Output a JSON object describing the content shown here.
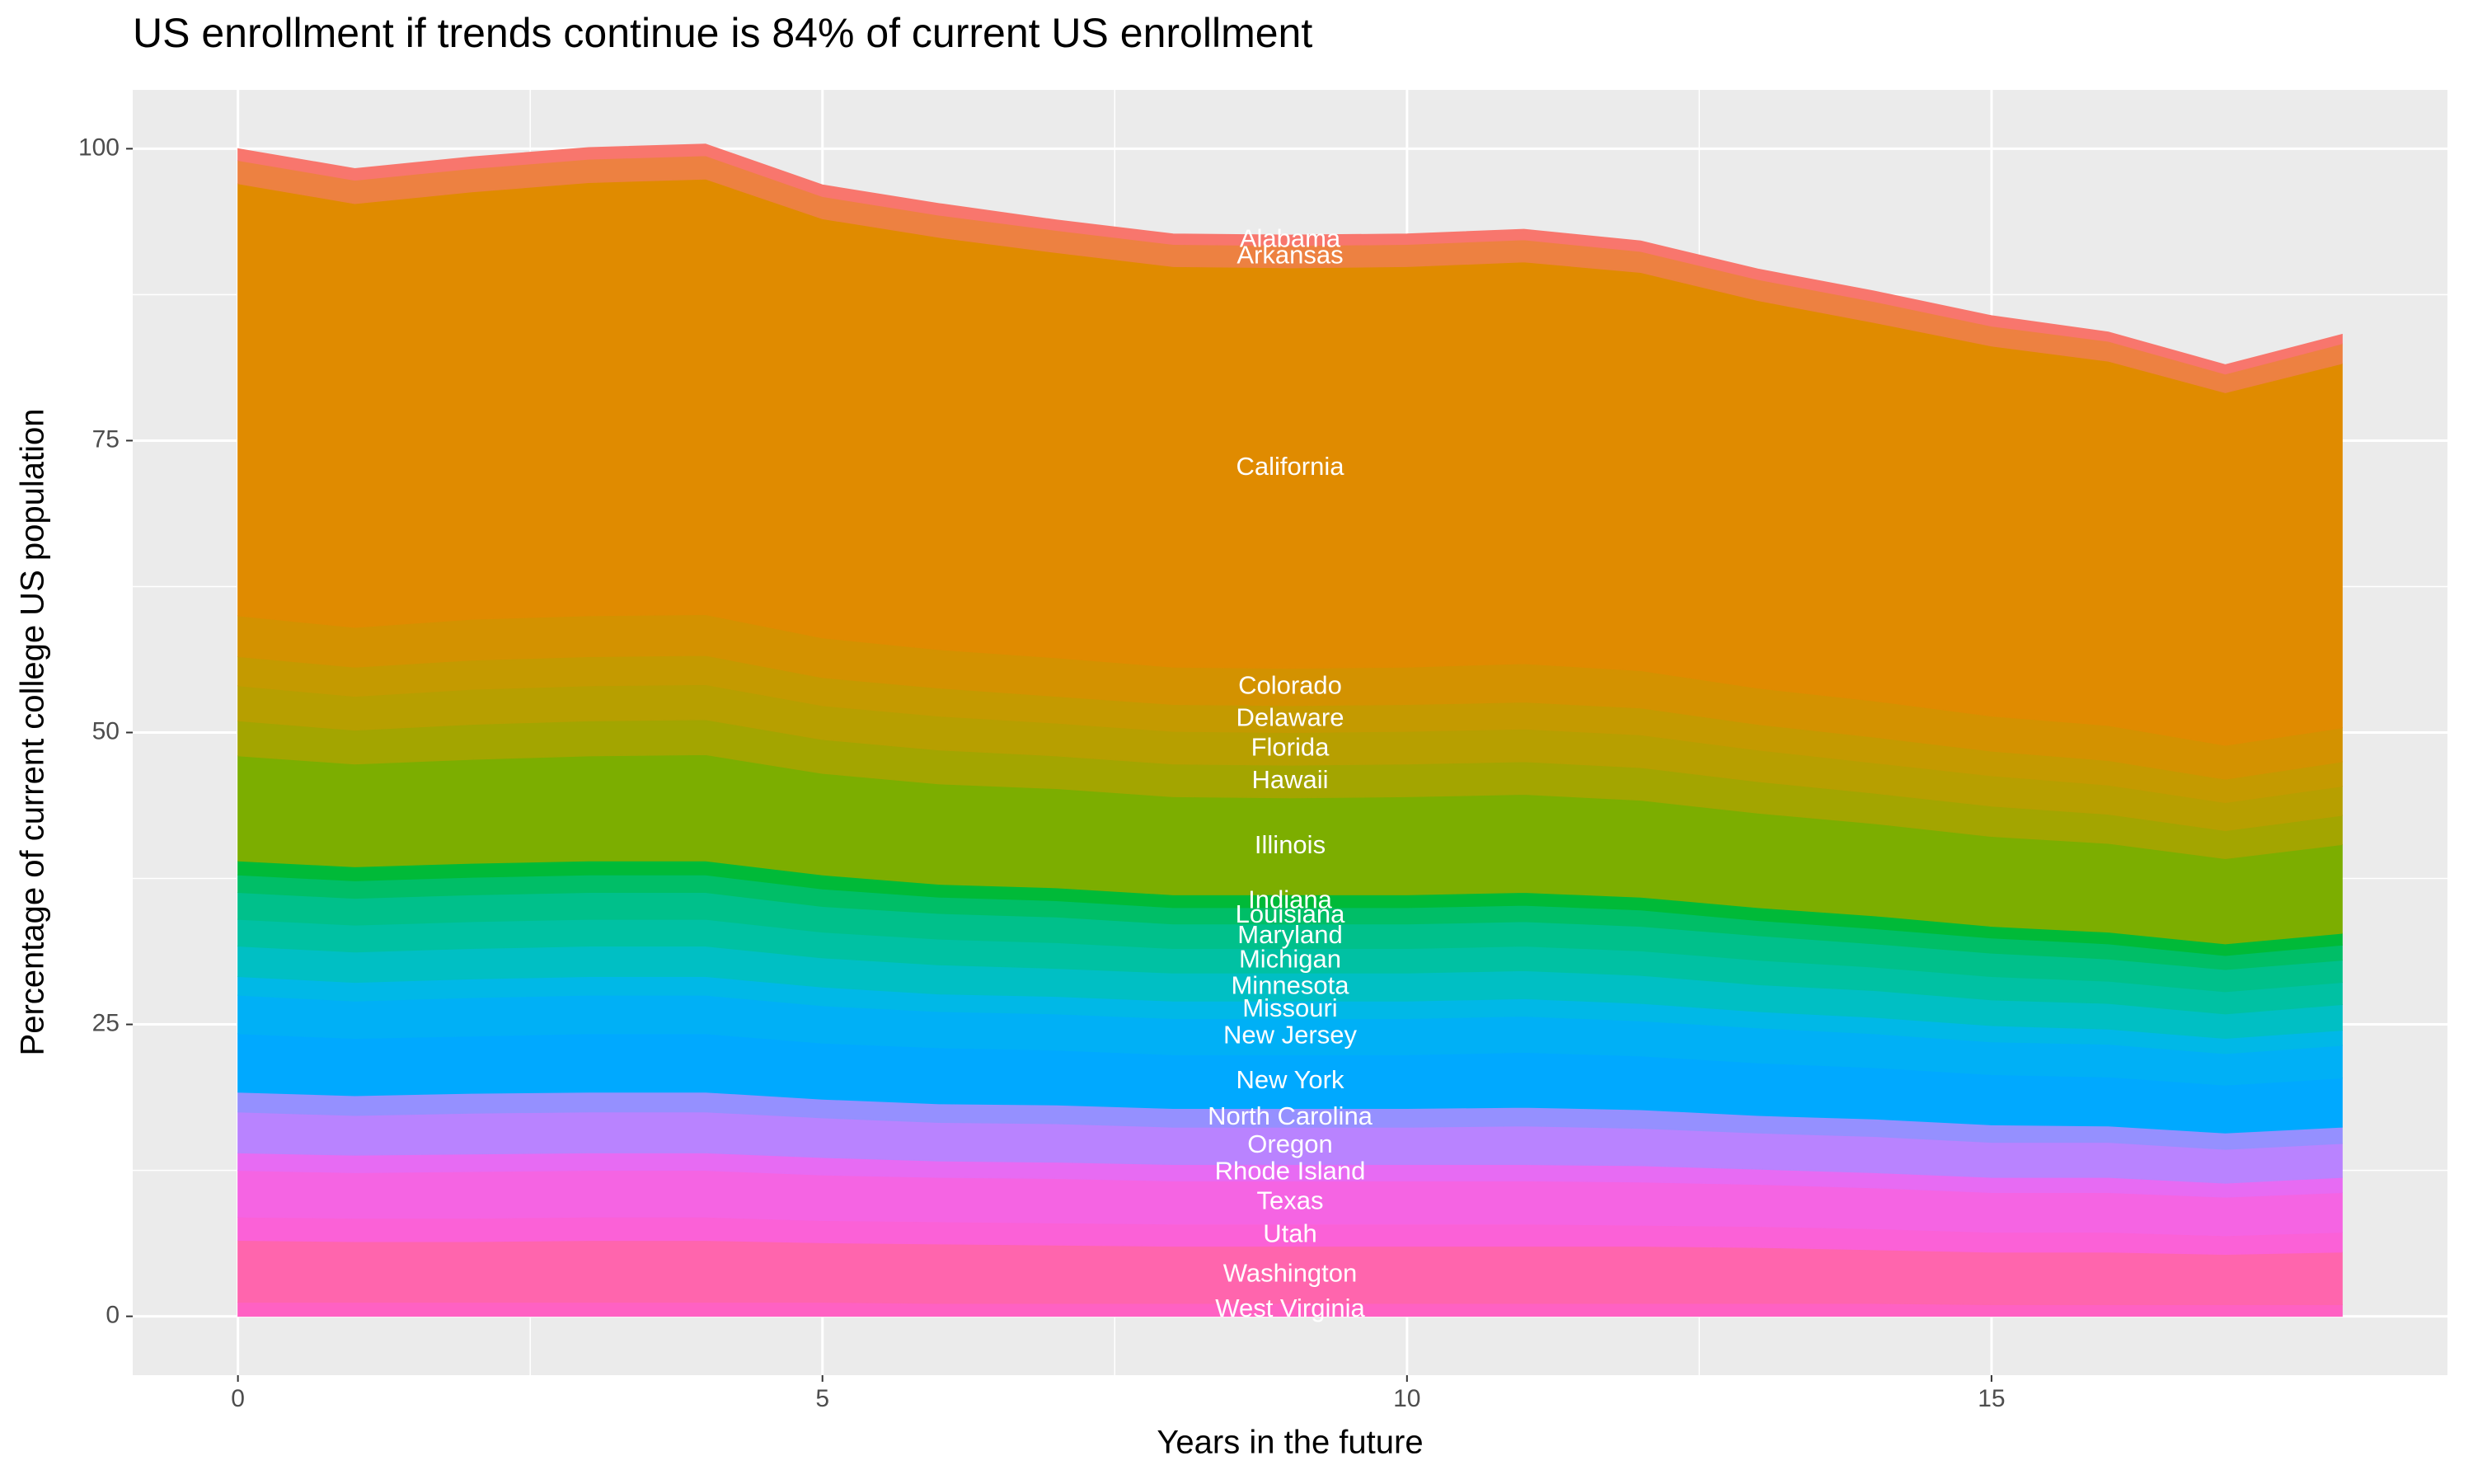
{
  "chart_data": {
    "type": "stacked_area",
    "title": "US enrollment if trends continue is 84% of current US enrollment",
    "xlabel": "Years in the future",
    "ylabel": "Percentage of current college US population",
    "x": [
      0,
      1,
      2,
      3,
      4,
      5,
      6,
      7,
      8,
      9,
      10,
      11,
      12,
      13,
      14,
      15,
      16,
      17,
      18
    ],
    "xlim": [
      -0.9,
      18.9
    ],
    "ylim": [
      -5.04,
      105.04
    ],
    "xticks": [
      0,
      5,
      10,
      15
    ],
    "yticks": [
      0,
      25,
      50,
      75,
      100
    ],
    "grid": true,
    "label_x": 9,
    "series": [
      {
        "name": "West Virginia",
        "color": "#ff61c3",
        "values": [
          1.2,
          1.2,
          1.2,
          1.2,
          1.2,
          1.2,
          1.1,
          1.1,
          1.1,
          1.1,
          1.1,
          1.1,
          1.1,
          1.1,
          1.1,
          1.0,
          1.0,
          1.0,
          1.0
        ]
      },
      {
        "name": "Washington",
        "color": "#ff65ad",
        "values": [
          5.3,
          5.2,
          5.2,
          5.3,
          5.3,
          5.1,
          5.1,
          5.0,
          4.9,
          4.9,
          4.9,
          4.9,
          4.9,
          4.8,
          4.6,
          4.5,
          4.5,
          4.3,
          4.5
        ]
      },
      {
        "name": "Utah",
        "color": "#fb61d7",
        "values": [
          2.0,
          2.0,
          2.0,
          2.0,
          2.0,
          1.9,
          1.9,
          1.9,
          1.9,
          1.9,
          1.9,
          1.9,
          1.8,
          1.8,
          1.8,
          1.7,
          1.7,
          1.6,
          1.7
        ]
      },
      {
        "name": "Texas",
        "color": "#f564e3",
        "values": [
          4.0,
          3.9,
          4.0,
          4.0,
          4.0,
          3.9,
          3.8,
          3.8,
          3.7,
          3.7,
          3.7,
          3.7,
          3.7,
          3.6,
          3.5,
          3.4,
          3.4,
          3.3,
          3.4
        ]
      },
      {
        "name": "Rhode Island",
        "color": "#e76bf3",
        "values": [
          1.5,
          1.5,
          1.5,
          1.5,
          1.5,
          1.5,
          1.4,
          1.4,
          1.4,
          1.4,
          1.4,
          1.4,
          1.4,
          1.3,
          1.3,
          1.3,
          1.3,
          1.2,
          1.3
        ]
      },
      {
        "name": "Oregon",
        "color": "#b983ff",
        "values": [
          3.5,
          3.4,
          3.5,
          3.5,
          3.5,
          3.4,
          3.3,
          3.3,
          3.2,
          3.2,
          3.2,
          3.3,
          3.2,
          3.1,
          3.1,
          3.0,
          3.0,
          2.9,
          2.9
        ]
      },
      {
        "name": "North Carolina",
        "color": "#9590ff",
        "values": [
          1.7,
          1.7,
          1.7,
          1.7,
          1.7,
          1.6,
          1.6,
          1.6,
          1.6,
          1.6,
          1.6,
          1.6,
          1.6,
          1.5,
          1.5,
          1.5,
          1.4,
          1.4,
          1.4
        ]
      },
      {
        "name": "New York",
        "color": "#00a9ff",
        "values": [
          5.0,
          4.9,
          4.9,
          5.0,
          5.0,
          4.8,
          4.8,
          4.7,
          4.6,
          4.6,
          4.6,
          4.7,
          4.6,
          4.5,
          4.4,
          4.3,
          4.2,
          4.1,
          4.2
        ]
      },
      {
        "name": "New Jersey",
        "color": "#00b0f6",
        "values": [
          3.3,
          3.2,
          3.3,
          3.3,
          3.3,
          3.2,
          3.1,
          3.1,
          3.1,
          3.1,
          3.1,
          3.1,
          3.0,
          3.0,
          2.9,
          2.8,
          2.8,
          2.7,
          2.8
        ]
      },
      {
        "name": "Missouri",
        "color": "#00b8e7",
        "values": [
          1.6,
          1.6,
          1.6,
          1.6,
          1.6,
          1.6,
          1.5,
          1.5,
          1.5,
          1.5,
          1.5,
          1.5,
          1.5,
          1.4,
          1.4,
          1.4,
          1.3,
          1.3,
          1.3
        ]
      },
      {
        "name": "Minnesota",
        "color": "#00bfc4",
        "values": [
          2.6,
          2.6,
          2.6,
          2.6,
          2.6,
          2.5,
          2.5,
          2.4,
          2.4,
          2.4,
          2.4,
          2.4,
          2.4,
          2.3,
          2.3,
          2.2,
          2.2,
          2.1,
          2.2
        ]
      },
      {
        "name": "Michigan",
        "color": "#00c1a3",
        "values": [
          2.3,
          2.3,
          2.3,
          2.3,
          2.3,
          2.2,
          2.2,
          2.2,
          2.1,
          2.1,
          2.1,
          2.1,
          2.1,
          2.1,
          2.0,
          2.0,
          1.9,
          1.9,
          1.9
        ]
      },
      {
        "name": "Maryland",
        "color": "#00c08b",
        "values": [
          2.3,
          2.3,
          2.3,
          2.3,
          2.3,
          2.2,
          2.2,
          2.2,
          2.1,
          2.1,
          2.1,
          2.1,
          2.1,
          2.1,
          2.0,
          2.0,
          1.9,
          1.9,
          1.9
        ]
      },
      {
        "name": "Louisiana",
        "color": "#00be67",
        "values": [
          1.5,
          1.5,
          1.5,
          1.5,
          1.5,
          1.5,
          1.4,
          1.4,
          1.4,
          1.4,
          1.4,
          1.4,
          1.4,
          1.3,
          1.3,
          1.3,
          1.3,
          1.2,
          1.3
        ]
      },
      {
        "name": "Indiana",
        "color": "#00ba38",
        "values": [
          1.2,
          1.2,
          1.2,
          1.2,
          1.2,
          1.2,
          1.1,
          1.1,
          1.1,
          1.1,
          1.1,
          1.1,
          1.1,
          1.1,
          1.1,
          1.0,
          1.0,
          1.0,
          1.0
        ]
      },
      {
        "name": "Illinois",
        "color": "#7cae00",
        "values": [
          9.0,
          8.8,
          8.9,
          9.0,
          9.1,
          8.7,
          8.6,
          8.5,
          8.4,
          8.3,
          8.4,
          8.4,
          8.3,
          8.1,
          7.9,
          7.7,
          7.6,
          7.3,
          7.6
        ]
      },
      {
        "name": "Hawaii",
        "color": "#a3a500",
        "values": [
          3.0,
          2.9,
          3.0,
          3.0,
          3.0,
          2.9,
          2.9,
          2.8,
          2.8,
          2.8,
          2.8,
          2.8,
          2.8,
          2.7,
          2.6,
          2.6,
          2.5,
          2.4,
          2.5
        ]
      },
      {
        "name": "Florida",
        "color": "#b79f00",
        "values": [
          3.0,
          2.9,
          3.0,
          3.0,
          3.0,
          2.9,
          2.9,
          2.8,
          2.8,
          2.8,
          2.8,
          2.8,
          2.8,
          2.7,
          2.6,
          2.6,
          2.5,
          2.4,
          2.5
        ]
      },
      {
        "name": "Delaware",
        "color": "#c49a00",
        "values": [
          2.5,
          2.5,
          2.5,
          2.5,
          2.5,
          2.4,
          2.4,
          2.3,
          2.3,
          2.3,
          2.3,
          2.3,
          2.3,
          2.2,
          2.2,
          2.1,
          2.1,
          2.0,
          2.1
        ]
      },
      {
        "name": "Colorado",
        "color": "#d39200",
        "values": [
          3.5,
          3.4,
          3.5,
          3.5,
          3.5,
          3.4,
          3.3,
          3.3,
          3.2,
          3.2,
          3.2,
          3.3,
          3.2,
          3.1,
          3.1,
          3.0,
          3.0,
          2.9,
          2.9
        ]
      },
      {
        "name": "California",
        "color": "#e08b00",
        "values": [
          37.0,
          36.3,
          36.6,
          37.1,
          37.3,
          35.9,
          35.3,
          34.7,
          34.3,
          34.3,
          34.3,
          34.4,
          34.1,
          33.2,
          32.4,
          31.7,
          31.2,
          30.2,
          31.2
        ]
      },
      {
        "name": "Arkansas",
        "color": "#ed8141",
        "values": [
          2.0,
          2.0,
          2.0,
          2.0,
          2.0,
          1.9,
          1.9,
          1.9,
          1.9,
          1.9,
          1.9,
          1.9,
          1.8,
          1.8,
          1.8,
          1.7,
          1.7,
          1.6,
          1.7
        ]
      },
      {
        "name": "Alabama",
        "color": "#f8766d",
        "values": [
          1.0,
          1.0,
          1.0,
          1.0,
          1.0,
          1.0,
          1.0,
          0.9,
          0.9,
          0.9,
          0.9,
          0.9,
          0.9,
          0.9,
          0.9,
          0.9,
          0.8,
          0.8,
          0.8
        ]
      }
    ]
  }
}
